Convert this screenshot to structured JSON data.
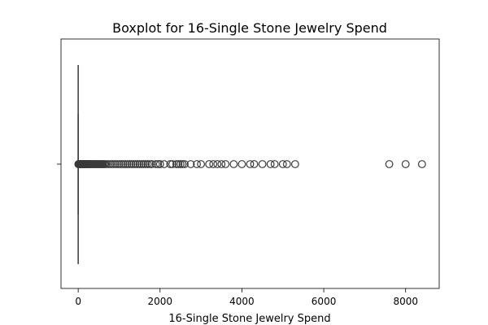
{
  "chart_data": {
    "type": "boxplot",
    "orientation": "horizontal",
    "title": "Boxplot for 16-Single Stone Jewelry Spend",
    "xlabel": "16-Single Stone Jewelry Spend",
    "ylabel": "",
    "xlim": [
      -420,
      8820
    ],
    "xticks": [
      0,
      2000,
      4000,
      6000,
      8000
    ],
    "grid": false,
    "legend": "none",
    "box": {
      "min": 0,
      "q1": 0,
      "median": 0,
      "q3": 0,
      "max": 0
    },
    "outliers": [
      5,
      10,
      15,
      20,
      25,
      30,
      35,
      40,
      45,
      50,
      55,
      60,
      65,
      70,
      75,
      80,
      85,
      90,
      95,
      100,
      110,
      120,
      130,
      140,
      150,
      160,
      170,
      180,
      190,
      200,
      210,
      220,
      230,
      240,
      250,
      260,
      270,
      280,
      290,
      300,
      320,
      340,
      360,
      380,
      400,
      420,
      440,
      460,
      480,
      500,
      520,
      540,
      560,
      580,
      600,
      630,
      660,
      700,
      750,
      800,
      850,
      900,
      950,
      1000,
      1050,
      1100,
      1150,
      1200,
      1250,
      1300,
      1350,
      1400,
      1450,
      1500,
      1550,
      1600,
      1650,
      1700,
      1750,
      1800,
      1900,
      1950,
      2000,
      2100,
      2250,
      2300,
      2400,
      2450,
      2500,
      2550,
      2600,
      2750,
      2900,
      3000,
      3200,
      3300,
      3400,
      3500,
      3600,
      3800,
      4000,
      4200,
      4300,
      4500,
      4700,
      4800,
      5000,
      5100,
      5300,
      7600,
      8000,
      8400
    ],
    "colors": {
      "box": "#3a3a3a",
      "marker_edge": "#3a3a3a",
      "axes": "#000000"
    }
  }
}
